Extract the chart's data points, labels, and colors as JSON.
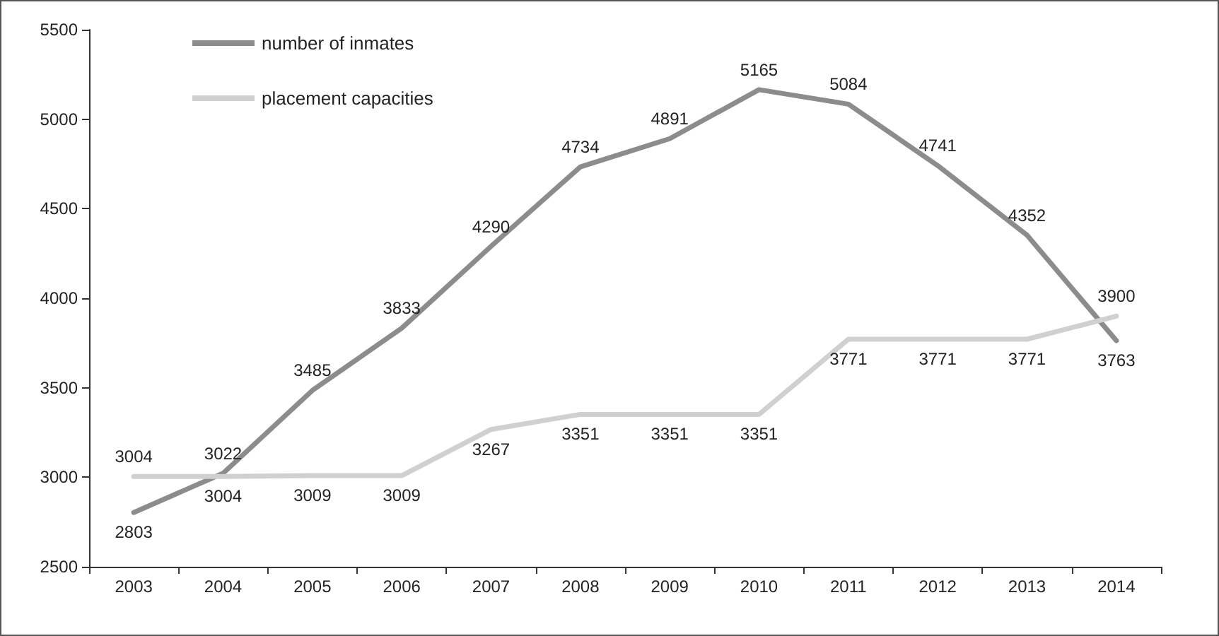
{
  "chart_data": {
    "type": "line",
    "categories": [
      "2003",
      "2004",
      "2005",
      "2006",
      "2007",
      "2008",
      "2009",
      "2010",
      "2011",
      "2012",
      "2013",
      "2014"
    ],
    "series": [
      {
        "name": "number of inmates",
        "color": "#8c8c8c",
        "values": [
          2803,
          3022,
          3485,
          3833,
          4290,
          4734,
          4891,
          5165,
          5084,
          4741,
          4352,
          3763
        ]
      },
      {
        "name": "placement capacities",
        "color": "#d0d0d0",
        "values": [
          3004,
          3004,
          3009,
          3009,
          3267,
          3351,
          3351,
          3351,
          3771,
          3771,
          3771,
          3900
        ]
      }
    ],
    "ylim": [
      2500,
      5500
    ],
    "yticks": [
      2500,
      3000,
      3500,
      4000,
      4500,
      5000,
      5500
    ],
    "grid": false,
    "legend": "top left",
    "marker": "none",
    "line_style": "solid",
    "data_labels": true
  }
}
